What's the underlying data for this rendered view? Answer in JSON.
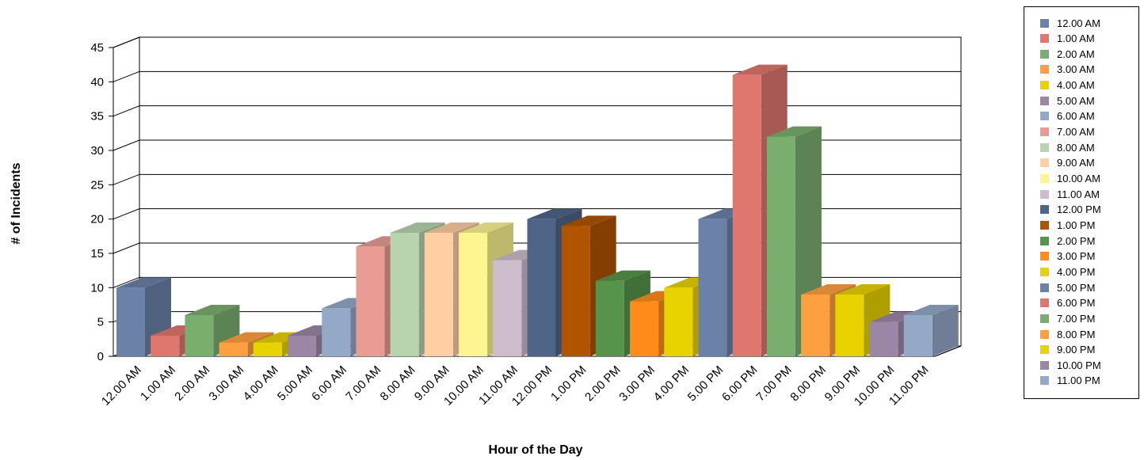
{
  "chart_data": {
    "type": "bar",
    "title": "",
    "xlabel": "Hour of the Day",
    "ylabel": "# of Incidents",
    "ylim": [
      0,
      45
    ],
    "y_ticks": [
      "0",
      "5",
      "10",
      "15",
      "20",
      "25",
      "30",
      "35",
      "40",
      "45"
    ],
    "grid": true,
    "legend_position": "right",
    "style": "3d",
    "categories": [
      "12.00 AM",
      "1.00 AM",
      "2.00 AM",
      "3.00 AM",
      "4.00 AM",
      "5.00 AM",
      "6.00 AM",
      "7.00 AM",
      "8.00 AM",
      "9.00 AM",
      "10.00 AM",
      "11.00 AM",
      "12.00 PM",
      "1.00 PM",
      "2.00 PM",
      "3.00 PM",
      "4.00 PM",
      "5.00 PM",
      "6.00 PM",
      "7.00 PM",
      "8.00 PM",
      "9.00 PM",
      "10.00 PM",
      "11.00 PM"
    ],
    "values": [
      10,
      3,
      6,
      2,
      2,
      3,
      7,
      16,
      18,
      18,
      18,
      14,
      20,
      19,
      11,
      8,
      10,
      20,
      41,
      32,
      9,
      9,
      5,
      6
    ],
    "colors": [
      "#6b81a8",
      "#e0776f",
      "#7aae6e",
      "#ffa040",
      "#e8d200",
      "#9c86a6",
      "#94a8c8",
      "#e89c94",
      "#b7d4ae",
      "#fdcfa2",
      "#fdf590",
      "#ccbccc",
      "#4f6587",
      "#b05400",
      "#57944b",
      "#ff8c1a",
      "#e8d200",
      "#6b81a8",
      "#e0776f",
      "#7aae6e",
      "#ffa040",
      "#e8d200",
      "#9c86a6",
      "#94a8c8"
    ]
  }
}
